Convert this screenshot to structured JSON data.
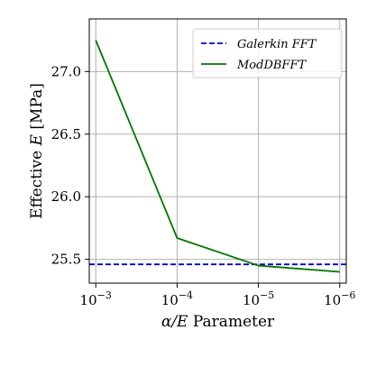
{
  "chart_data": {
    "type": "line",
    "x_scale": "log-reversed",
    "xlim_exp": [
      -2.92,
      -6.08
    ],
    "ylim": [
      25.31,
      27.42
    ],
    "grid": true,
    "legend_position": "top-right",
    "xlabel": {
      "math": "α/E",
      "text": " Parameter"
    },
    "ylabel": {
      "text": "Effective ",
      "math": "E",
      "unit": " [MPa]"
    },
    "x_ticks": [
      {
        "exp": -3,
        "base": "10",
        "sup": "−3"
      },
      {
        "exp": -4,
        "base": "10",
        "sup": "−4"
      },
      {
        "exp": -5,
        "base": "10",
        "sup": "−5"
      },
      {
        "exp": -6,
        "base": "10",
        "sup": "−6"
      }
    ],
    "y_ticks": [
      {
        "value": 25.5,
        "label": "25.5"
      },
      {
        "value": 26.0,
        "label": "26.0"
      },
      {
        "value": 26.5,
        "label": "26.5"
      },
      {
        "value": 27.0,
        "label": "27.0"
      }
    ],
    "series": [
      {
        "name": "Galerkin FFT",
        "color": "#0000cc",
        "style": "dashed",
        "x_exp": [
          -2.92,
          -6.08
        ],
        "values": [
          25.46,
          25.46
        ]
      },
      {
        "name": "ModDBFFT",
        "color": "#007700",
        "style": "solid",
        "x_exp": [
          -3,
          -4,
          -5,
          -6
        ],
        "values": [
          27.25,
          25.67,
          25.45,
          25.4
        ]
      }
    ]
  }
}
